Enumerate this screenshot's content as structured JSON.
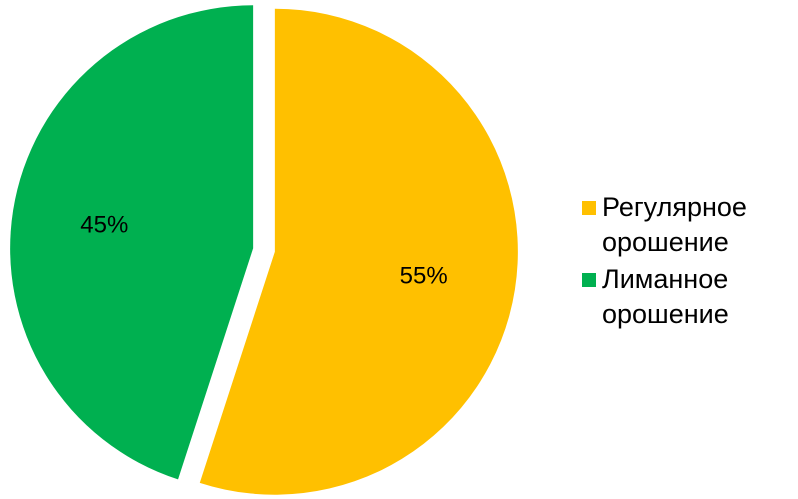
{
  "chart_data": {
    "type": "pie",
    "title": "",
    "slices": [
      {
        "name": "Регулярное орошение",
        "value": 55,
        "label": "55%",
        "color": "#FFC000"
      },
      {
        "name": "Лиманное орошение",
        "value": 45,
        "label": "45%",
        "color": "#00B050"
      }
    ],
    "legend_position": "right"
  }
}
